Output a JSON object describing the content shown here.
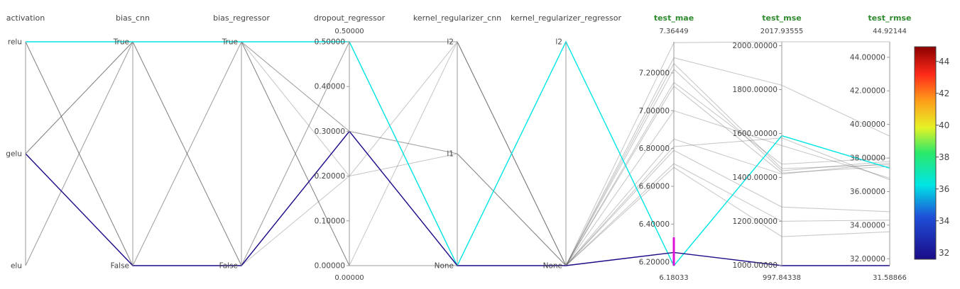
{
  "chart_data": {
    "type": "parallel_coordinates",
    "axes": [
      {
        "key": "activation",
        "label": "activation",
        "kind": "categorical",
        "categories": [
          "relu",
          "gelu",
          "elu"
        ],
        "metric": false
      },
      {
        "key": "bias_cnn",
        "label": "bias_cnn",
        "kind": "categorical",
        "categories": [
          "True",
          "False"
        ],
        "metric": false
      },
      {
        "key": "bias_regressor",
        "label": "bias_regressor",
        "kind": "categorical",
        "categories": [
          "True",
          "False"
        ],
        "metric": false
      },
      {
        "key": "dropout_regressor",
        "label": "dropout_regressor",
        "kind": "numeric",
        "range": [
          0,
          0.5
        ],
        "range_labels": [
          "0.50000",
          "0.00000"
        ],
        "ticks": [
          0,
          0.1,
          0.2,
          0.3,
          0.4,
          0.5
        ],
        "tick_labels": [
          "0.00000",
          "0.10000",
          "0.20000",
          "0.30000",
          "0.40000",
          "0.50000"
        ],
        "metric": false
      },
      {
        "key": "kernel_regularizer_cnn",
        "label": "kernel_regularizer_cnn",
        "kind": "categorical",
        "categories": [
          "l2",
          "l1",
          "None"
        ],
        "metric": false
      },
      {
        "key": "kernel_regularizer_regressor",
        "label": "kernel_regularizer_regressor",
        "kind": "categorical",
        "categories": [
          "l2",
          "None"
        ],
        "metric": false
      },
      {
        "key": "test_mae",
        "label": "test_mae",
        "kind": "numeric",
        "range": [
          6.18033,
          7.36449
        ],
        "range_labels": [
          "7.36449",
          "6.18033"
        ],
        "ticks": [
          6.2,
          6.4,
          6.6,
          6.8,
          7.0,
          7.2
        ],
        "tick_labels": [
          "6.20000",
          "6.40000",
          "6.60000",
          "6.80000",
          "7.00000",
          "7.20000"
        ],
        "metric": true
      },
      {
        "key": "test_mse",
        "label": "test_mse",
        "kind": "numeric",
        "range": [
          997.84338,
          2017.93555
        ],
        "range_labels": [
          "2017.93555",
          "997.84338"
        ],
        "ticks": [
          1000,
          1200,
          1400,
          1600,
          1800,
          2000
        ],
        "tick_labels": [
          "1000.00000",
          "1200.00000",
          "1400.00000",
          "1600.00000",
          "1800.00000",
          "2000.00000"
        ],
        "metric": true
      },
      {
        "key": "test_rmse",
        "label": "test_rmse",
        "kind": "numeric",
        "range": [
          31.58866,
          44.92144
        ],
        "range_labels": [
          "44.92144",
          "31.58866"
        ],
        "ticks": [
          32,
          34,
          36,
          38,
          40,
          42,
          44
        ],
        "tick_labels": [
          "32.00000",
          "34.00000",
          "36.00000",
          "38.00000",
          "40.00000",
          "42.00000",
          "44.00000"
        ],
        "metric": true
      }
    ],
    "runs": [
      {
        "values": [
          "relu",
          "True",
          "True",
          0.5,
          "None",
          "l2",
          6.18,
          1590,
          37.4
        ],
        "highlight": "#00e5e5"
      },
      {
        "values": [
          "gelu",
          "False",
          "False",
          0.3,
          "None",
          "None",
          6.25,
          998,
          31.59
        ],
        "highlight": "#1a0b87"
      },
      {
        "values": [
          "relu",
          "True",
          "True",
          0.5,
          "l2",
          "None",
          7.36,
          2018,
          44.92
        ],
        "highlight": null
      },
      {
        "values": [
          "relu",
          "False",
          "False",
          0.3,
          "l1",
          "None",
          7.28,
          1820,
          39.3
        ],
        "highlight": null
      },
      {
        "values": [
          "relu",
          "True",
          "True",
          0.5,
          "None",
          "None",
          7.25,
          1440,
          37.6
        ],
        "highlight": null
      },
      {
        "values": [
          "gelu",
          "True",
          "True",
          0.2,
          "l2",
          "None",
          7.22,
          1430,
          37.8
        ],
        "highlight": null
      },
      {
        "values": [
          "elu",
          "True",
          "True",
          0.3,
          "None",
          "None",
          7.15,
          1460,
          38.0
        ],
        "highlight": null
      },
      {
        "values": [
          "relu",
          "False",
          "True",
          0.0,
          "l2",
          "None",
          7.13,
          1420,
          37.5
        ],
        "highlight": null
      },
      {
        "values": [
          "relu",
          "True",
          "False",
          0.2,
          "l1",
          "None",
          7.0,
          1545,
          36.8
        ],
        "highlight": null
      },
      {
        "values": [
          "gelu",
          "True",
          "True",
          0.0,
          "None",
          "None",
          6.85,
          1415,
          37.7
        ],
        "highlight": null
      },
      {
        "values": [
          "elu",
          "True",
          "False",
          0.5,
          "l2",
          "None",
          6.81,
          1580,
          36.7
        ],
        "highlight": null
      },
      {
        "values": [
          "relu",
          "False",
          "True",
          0.3,
          "l1",
          "None",
          6.79,
          1265,
          34.8
        ],
        "highlight": null
      },
      {
        "values": [
          "relu",
          "True",
          "True",
          0.0,
          "None",
          "None",
          6.72,
          1200,
          34.3
        ],
        "highlight": null
      },
      {
        "values": [
          "gelu",
          "True",
          "False",
          0.5,
          "None",
          "None",
          6.7,
          1130,
          33.6
        ],
        "highlight": null
      }
    ],
    "brush": {
      "axis": "test_mae",
      "range": [
        6.18,
        6.33
      ],
      "color": "#e011d6"
    },
    "colorbar": {
      "metric": "test_rmse",
      "range": [
        31.58866,
        44.92144
      ],
      "ticks": [
        34,
        36,
        38,
        40,
        42,
        44
      ],
      "tick_labels": [
        "34",
        "36",
        "38",
        "40",
        "42",
        "44"
      ],
      "extra_label": "32"
    }
  }
}
